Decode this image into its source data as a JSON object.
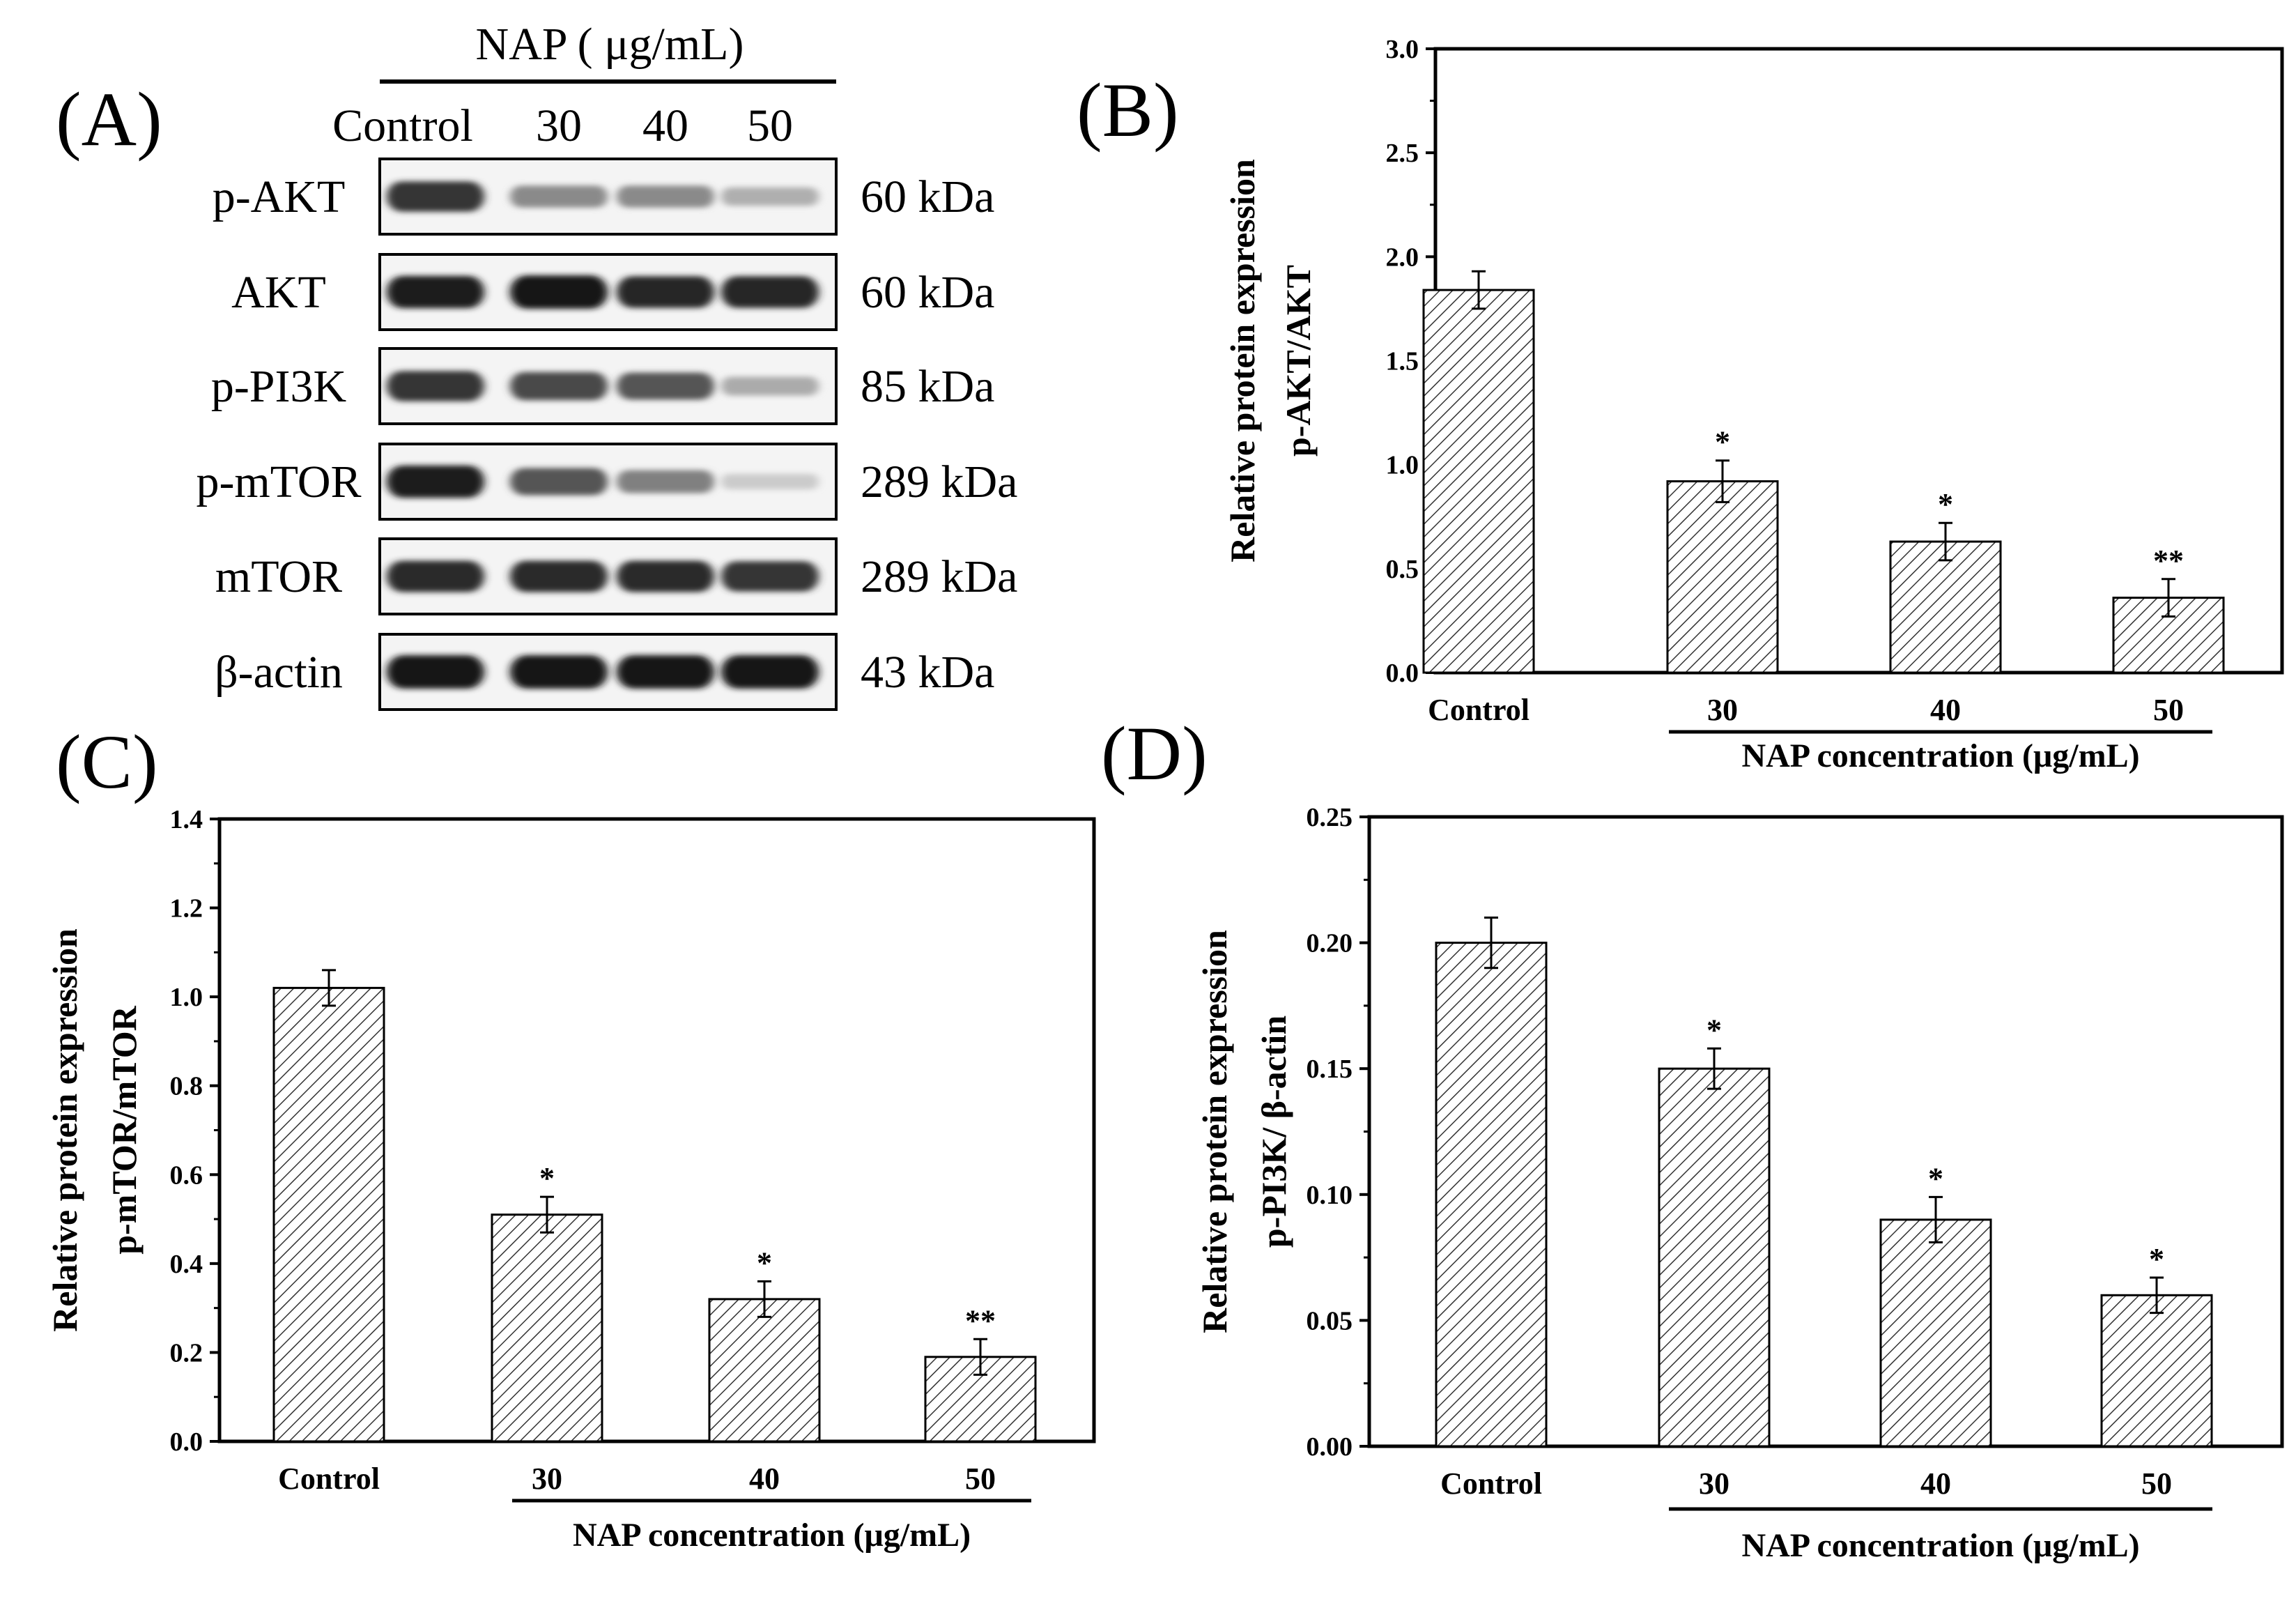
{
  "figure": {
    "panel_labels": [
      "(A)",
      "(B)",
      "(C)",
      "(D)"
    ]
  },
  "blot": {
    "treatment_header": "NAP ( μg/mL)",
    "lanes": [
      "Control",
      "30",
      "40",
      "50"
    ],
    "rows": [
      {
        "protein": "p-AKT",
        "size": "60 kDa",
        "intensity": [
          0.85,
          0.45,
          0.45,
          0.28
        ]
      },
      {
        "protein": "AKT",
        "size": "60 kDa",
        "intensity": [
          0.95,
          1.0,
          0.92,
          0.92
        ]
      },
      {
        "protein": "p-PI3K",
        "size": "85 kDa",
        "intensity": [
          0.85,
          0.75,
          0.7,
          0.3
        ]
      },
      {
        "protein": "p-mTOR",
        "size": "289 kDa",
        "intensity": [
          0.95,
          0.7,
          0.5,
          0.15
        ]
      },
      {
        "protein": "mTOR",
        "size": "289 kDa",
        "intensity": [
          0.9,
          0.9,
          0.9,
          0.85
        ]
      },
      {
        "protein": "β-actin",
        "size": "43 kDa",
        "intensity": [
          1.0,
          1.0,
          1.0,
          1.0
        ]
      }
    ]
  },
  "chart_data": [
    {
      "panel": "(B)",
      "type": "bar",
      "categories": [
        "Control",
        "30",
        "40",
        "50"
      ],
      "values": [
        1.84,
        0.92,
        0.63,
        0.36
      ],
      "errors": [
        0.09,
        0.1,
        0.09,
        0.09
      ],
      "significance": [
        "",
        "*",
        "*",
        "**"
      ],
      "ylabel_line1": "Relative protein expression",
      "ylabel_line2": "p-AKT/AKT",
      "xlabel": "NAP concentration (μg/mL)",
      "ylim": [
        0,
        3.0
      ],
      "yticks": [
        "0.0",
        "0.5",
        "1.0",
        "1.5",
        "2.0",
        "2.5",
        "3.0"
      ]
    },
    {
      "panel": "(C)",
      "type": "bar",
      "categories": [
        "Control",
        "30",
        "40",
        "50"
      ],
      "values": [
        1.02,
        0.51,
        0.32,
        0.19
      ],
      "errors": [
        0.04,
        0.04,
        0.04,
        0.04
      ],
      "significance": [
        "",
        "*",
        "*",
        "**"
      ],
      "ylabel_line1": "Relative protein expression",
      "ylabel_line2": "p-mTOR/mTOR",
      "xlabel": "NAP concentration (μg/mL)",
      "ylim": [
        0,
        1.4
      ],
      "yticks": [
        "0.0",
        "0.2",
        "0.4",
        "0.6",
        "0.8",
        "1.0",
        "1.2",
        "1.4"
      ]
    },
    {
      "panel": "(D)",
      "type": "bar",
      "categories": [
        "Control",
        "30",
        "40",
        "50"
      ],
      "values": [
        0.2,
        0.15,
        0.09,
        0.06
      ],
      "errors": [
        0.01,
        0.008,
        0.009,
        0.007
      ],
      "significance": [
        "",
        "*",
        "*",
        "*"
      ],
      "ylabel_line1": "Relative protein expression",
      "ylabel_line2": "p-PI3K/ β-actin",
      "xlabel": "NAP concentration (μg/mL)",
      "ylim": [
        0,
        0.25
      ],
      "yticks": [
        "0.00",
        "0.05",
        "0.10",
        "0.15",
        "0.20",
        "0.25"
      ]
    }
  ]
}
